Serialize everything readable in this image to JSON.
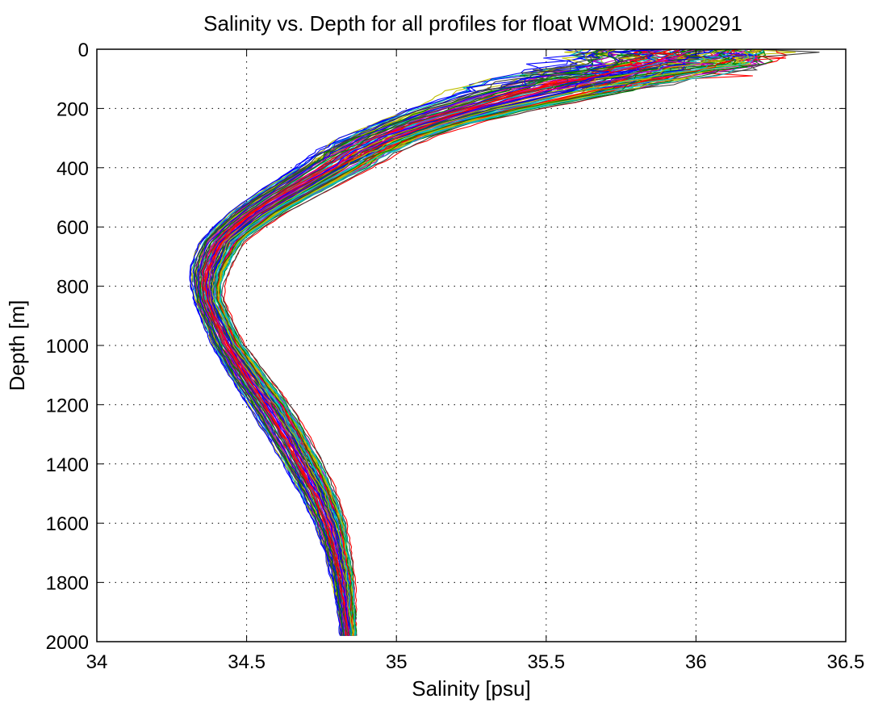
{
  "chart_data": {
    "type": "line",
    "title": "Salinity vs. Depth for all profiles for float WMOId: 1900291",
    "xlabel": "Salinity [psu]",
    "ylabel": "Depth [m]",
    "xlim": [
      34,
      36.5
    ],
    "ylim": [
      0,
      2000
    ],
    "y_reversed": true,
    "grid": true,
    "x_ticks": [
      "34",
      "34.5",
      "35",
      "35.5",
      "36",
      "36.5"
    ],
    "y_ticks": [
      "0",
      "200",
      "400",
      "600",
      "800",
      "1000",
      "1200",
      "1400",
      "1600",
      "1800",
      "2000"
    ],
    "profile_count_approx": 100,
    "series_colors": [
      "#0000ff",
      "#008000",
      "#ff0000",
      "#00bfbf",
      "#bf00bf",
      "#bfbf00",
      "#404040"
    ],
    "representative_profile": {
      "depth": [
        0,
        50,
        100,
        150,
        200,
        250,
        300,
        350,
        400,
        450,
        500,
        550,
        600,
        650,
        700,
        750,
        800,
        850,
        900,
        1000,
        1100,
        1200,
        1300,
        1400,
        1500,
        1600,
        1700,
        1800,
        1900,
        1980
      ],
      "salinity": [
        35.95,
        35.85,
        35.62,
        35.4,
        35.25,
        35.12,
        35.0,
        34.9,
        34.8,
        34.7,
        34.6,
        34.52,
        34.46,
        34.42,
        34.39,
        34.37,
        34.36,
        34.37,
        34.39,
        34.44,
        34.5,
        34.56,
        34.62,
        34.67,
        34.72,
        34.76,
        34.79,
        34.81,
        34.83,
        34.84
      ]
    },
    "envelope": {
      "depth": [
        0,
        50,
        100,
        150,
        200,
        250,
        300,
        350,
        400,
        450,
        500,
        550,
        600,
        650,
        700,
        750,
        800,
        850,
        900,
        1000,
        1100,
        1200,
        1300,
        1400,
        1500,
        1600,
        1700,
        1800,
        1900,
        1980
      ],
      "salinity_min": [
        35.45,
        35.4,
        35.2,
        35.05,
        34.95,
        34.85,
        34.75,
        34.67,
        34.6,
        34.53,
        34.46,
        34.4,
        34.35,
        34.31,
        34.29,
        34.28,
        34.29,
        34.3,
        34.32,
        34.36,
        34.41,
        34.47,
        34.53,
        34.59,
        34.65,
        34.7,
        34.74,
        34.77,
        34.79,
        34.8
      ],
      "salinity_max": [
        36.45,
        36.4,
        36.15,
        35.9,
        35.6,
        35.35,
        35.18,
        35.06,
        34.98,
        34.88,
        34.78,
        34.68,
        34.6,
        34.53,
        34.5,
        34.47,
        34.45,
        34.45,
        34.47,
        34.52,
        34.6,
        34.68,
        34.74,
        34.79,
        34.83,
        34.86,
        34.87,
        34.88,
        34.88,
        34.88
      ]
    }
  }
}
